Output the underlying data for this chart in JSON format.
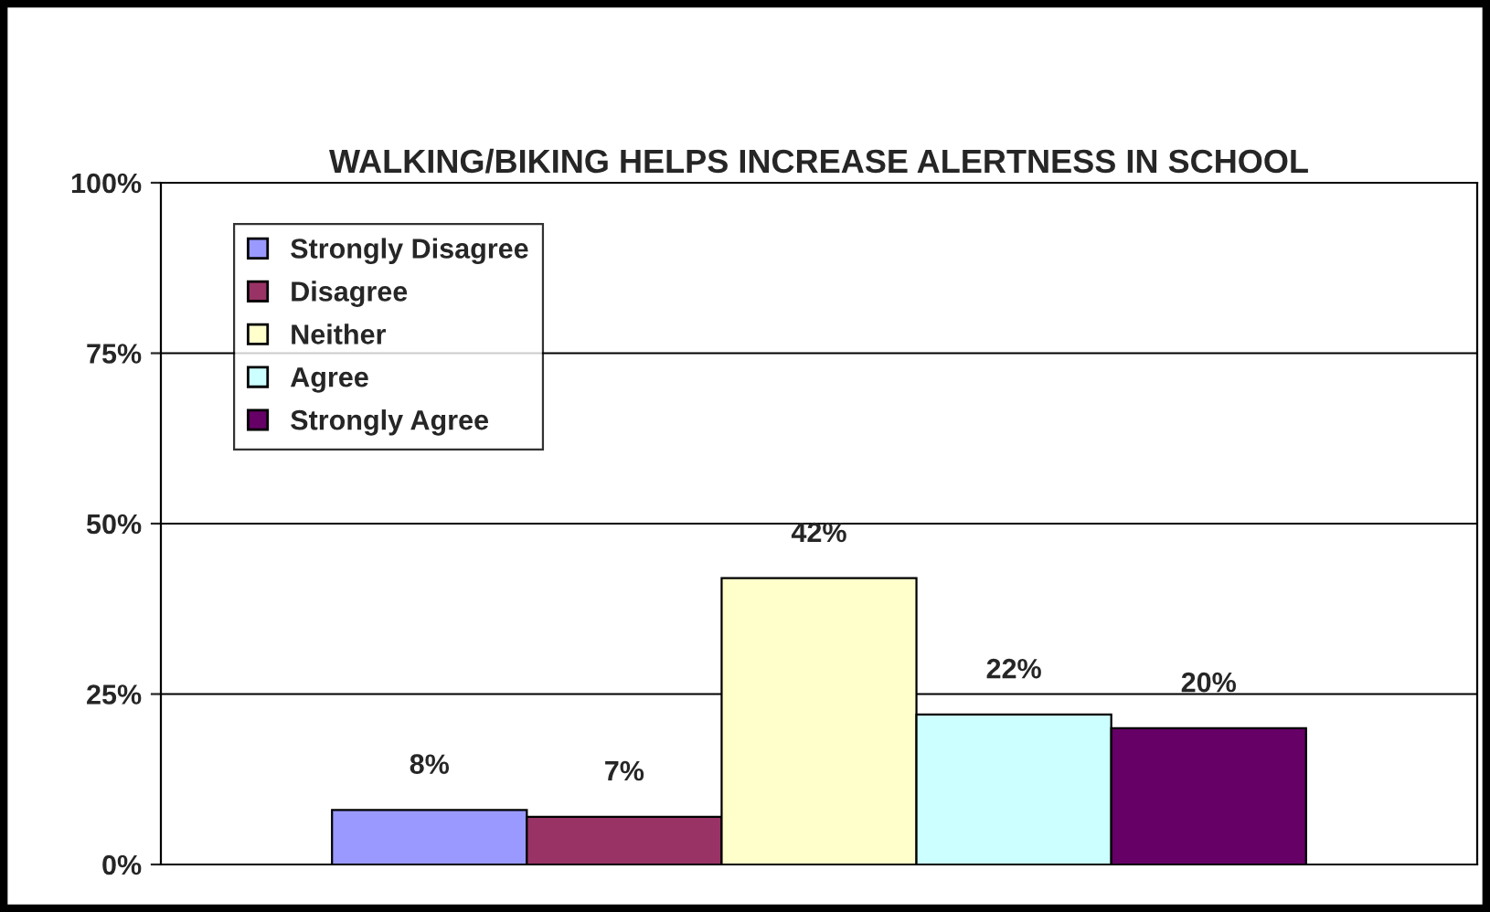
{
  "chart_data": {
    "type": "bar",
    "title": "WALKING/BIKING HELPS INCREASE ALERTNESS IN SCHOOL",
    "categories": [
      null
    ],
    "series": [
      {
        "name": "Strongly Disagree",
        "color": "#9999ff",
        "values": [
          8
        ],
        "value_labels": [
          "8%"
        ]
      },
      {
        "name": "Disagree",
        "color": "#993366",
        "values": [
          7
        ],
        "value_labels": [
          "7%"
        ]
      },
      {
        "name": "Neither",
        "color": "#ffffcc",
        "values": [
          42
        ],
        "value_labels": [
          "42%"
        ]
      },
      {
        "name": "Agree",
        "color": "#ccffff",
        "values": [
          22
        ],
        "value_labels": [
          "22%"
        ]
      },
      {
        "name": "Strongly Agree",
        "color": "#660066",
        "values": [
          20
        ],
        "value_labels": [
          "20%"
        ]
      }
    ],
    "ylim": [
      0,
      100
    ],
    "yticks": [
      {
        "value": 0,
        "label": "0%"
      },
      {
        "value": 25,
        "label": "25%"
      },
      {
        "value": 50,
        "label": "50%"
      },
      {
        "value": 75,
        "label": "75%"
      },
      {
        "value": 100,
        "label": "100%"
      }
    ],
    "grid": "y",
    "legend": "top left"
  }
}
